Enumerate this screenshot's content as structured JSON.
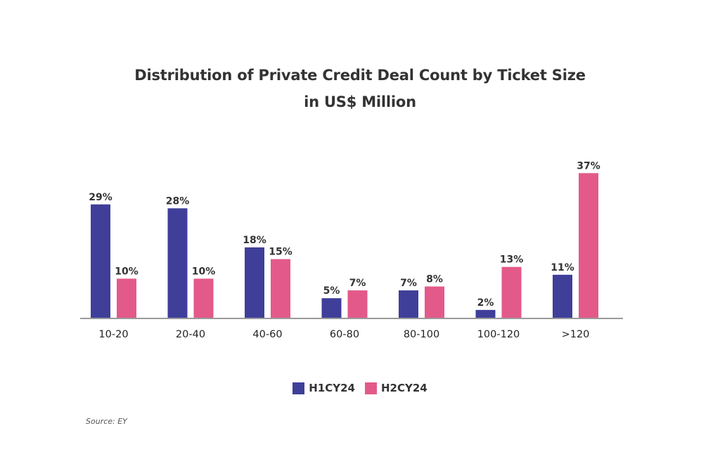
{
  "chart_data": {
    "type": "bar",
    "title_lines": [
      "Distribution of Private Credit Deal Count by Ticket Size",
      "in US$ Million"
    ],
    "categories": [
      "10-20",
      "20-40",
      "40-60",
      "60-80",
      "80-100",
      "100-120",
      ">120"
    ],
    "series": [
      {
        "name": "H1CY24",
        "color": "#3f3f9a",
        "values": [
          29,
          28,
          18,
          5,
          7,
          2,
          11
        ]
      },
      {
        "name": "H2CY24",
        "color": "#e35a8a",
        "values": [
          10,
          10,
          15,
          7,
          8,
          13,
          37
        ]
      }
    ],
    "value_suffix": "%",
    "ylim": [
      0,
      40
    ],
    "grid": false,
    "legend_position": "bottom-center"
  },
  "source": "Source: EY"
}
